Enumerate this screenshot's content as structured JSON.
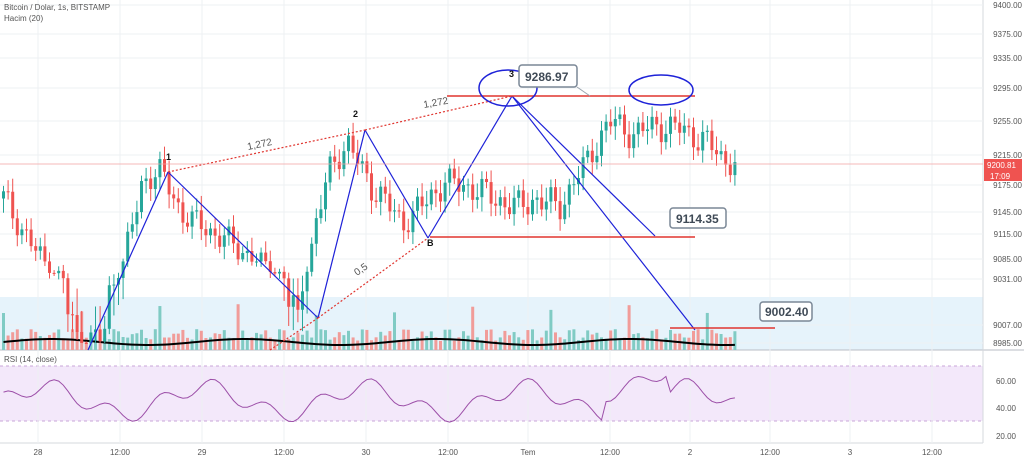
{
  "header": {
    "title": "Bitcoin / Dolar, 1s, BITSTAMP",
    "volume_label": "Hacim (20)",
    "rsi_label": "RSI (14, close)"
  },
  "colors": {
    "up": "#26a69a",
    "down": "#ef5350",
    "vol_up": "#80cbc4",
    "vol_down": "#f19c99",
    "blue": "#1e22d8",
    "red": "#e0352f",
    "rsi_line": "#9c4fa8",
    "rsi_band": "#f3e8fa",
    "vol_band": "#e6f3fb",
    "grid": "#eef0f3"
  },
  "chart_data": [
    {
      "type": "candlestick",
      "y_ticks": [
        "9400.00",
        "9375.00",
        "9335.00",
        "9295.00",
        "9255.00",
        "9215.00",
        "9175.00",
        "9145.00",
        "9115.00",
        "9085.00",
        "9031.00",
        "9007.00",
        "8985.00"
      ],
      "x_ticks": [
        "28",
        "12:00",
        "29",
        "12:00",
        "30",
        "12:00",
        "Tem",
        "12:00",
        "2",
        "12:00",
        "3",
        "12:00"
      ],
      "last_price": "9200.81",
      "countdown": "17:09",
      "annotations": {
        "point_labels": [
          "1",
          "2",
          "3",
          "B"
        ],
        "fib_labels": [
          "1,272",
          "1,272",
          "0,5"
        ],
        "price_callouts": [
          "9286.97",
          "9114.35",
          "9002.40"
        ]
      }
    },
    {
      "type": "line",
      "name": "RSI (14, close)",
      "y_ticks": [
        "60.00",
        "40.00",
        "20.00"
      ],
      "band": [
        30,
        70
      ],
      "ylim": [
        20,
        75
      ]
    }
  ]
}
